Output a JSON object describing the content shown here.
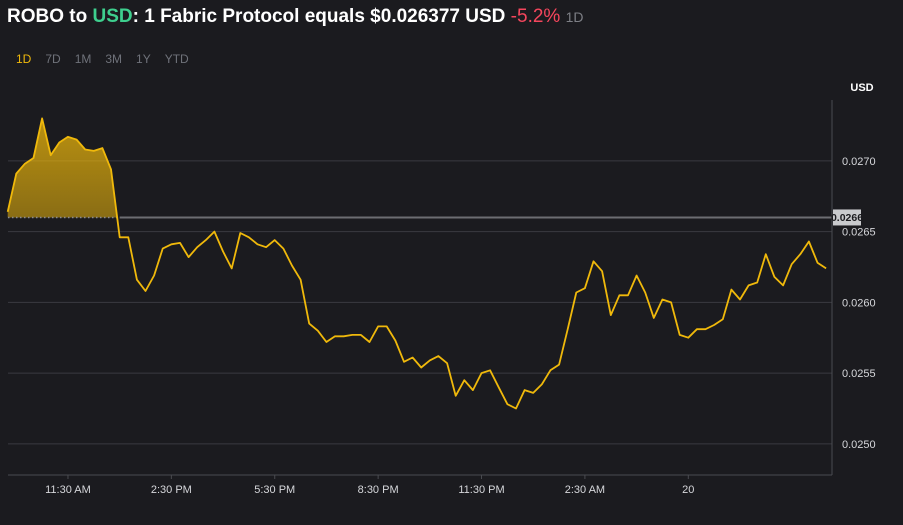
{
  "chart_data": {
    "type": "line",
    "title": [
      "ROBO to",
      "USD",
      ": 1 Fabric Protocol equals $0.026377 USD",
      "-5.2%",
      "1D"
    ],
    "ranges": [
      "1D",
      "7D",
      "1M",
      "3M",
      "1Y",
      "YTD"
    ],
    "active_range": "1D",
    "y_axis_label": "USD",
    "color": "#f0b90b",
    "reference": 0.0266,
    "xlim": [
      9.76,
      33.67
    ],
    "ylim": [
      0.02478,
      0.02743
    ],
    "xticks": [
      {
        "value": 11.5,
        "label": "11:30 AM"
      },
      {
        "value": 14.5,
        "label": "2:30 PM"
      },
      {
        "value": 17.5,
        "label": "5:30 PM"
      },
      {
        "value": 20.5,
        "label": "8:30 PM"
      },
      {
        "value": 23.5,
        "label": "11:30 PM"
      },
      {
        "value": 26.5,
        "label": "2:30 AM"
      },
      {
        "value": 29.5,
        "label": "20"
      }
    ],
    "yticks": [
      {
        "value": 0.025,
        "label": "0.0250"
      },
      0.0255,
      {
        "value": 0.026,
        "label": "0.0260"
      },
      0.0265,
      {
        "value": 0.027,
        "label": "0.0270"
      }
    ],
    "grid": true,
    "x": [
      9.75,
      10,
      10.25,
      10.5,
      10.75,
      11,
      11.25,
      11.5,
      11.75,
      12,
      12.25,
      12.5,
      12.75,
      13,
      13.25,
      13.5,
      13.75,
      14,
      14.25,
      14.5,
      14.75,
      15,
      15.25,
      15.5,
      15.75,
      16,
      16.25,
      16.5,
      16.75,
      17,
      17.25,
      17.5,
      17.75,
      18,
      18.25,
      18.5,
      18.75,
      19,
      19.25,
      19.5,
      19.75,
      20,
      20.25,
      20.5,
      20.75,
      21,
      21.25,
      21.5,
      21.75,
      22,
      22.25,
      22.5,
      22.75,
      23,
      23.25,
      23.5,
      23.75,
      24,
      24.25,
      24.5,
      24.75,
      25,
      25.25,
      25.5,
      25.75,
      26,
      26.25,
      26.5,
      26.75,
      27,
      27.25,
      27.5,
      27.75,
      28,
      28.25,
      28.5,
      28.75,
      29,
      29.25,
      29.5,
      29.75,
      30,
      30.25,
      30.5,
      30.75,
      31,
      31.25,
      31.5,
      31.75,
      32,
      32.25,
      32.5,
      32.75,
      33,
      33.25,
      33.5
    ],
    "values": [
      0.02664,
      0.02691,
      0.02698,
      0.02702,
      0.0273,
      0.02704,
      0.02713,
      0.02717,
      0.02715,
      0.02708,
      0.02707,
      0.02709,
      0.02694,
      0.02646,
      0.02646,
      0.02616,
      0.02608,
      0.02619,
      0.02638,
      0.02641,
      0.02642,
      0.02632,
      0.02639,
      0.02644,
      0.0265,
      0.02636,
      0.02624,
      0.02649,
      0.02646,
      0.02641,
      0.02639,
      0.02644,
      0.02638,
      0.02626,
      0.02616,
      0.02585,
      0.0258,
      0.02572,
      0.02576,
      0.02576,
      0.02577,
      0.02577,
      0.02572,
      0.02583,
      0.02583,
      0.02573,
      0.02558,
      0.02561,
      0.02554,
      0.02559,
      0.02562,
      0.02557,
      0.02534,
      0.02545,
      0.02538,
      0.0255,
      0.02552,
      0.0254,
      0.02528,
      0.02525,
      0.02538,
      0.02536,
      0.02542,
      0.02552,
      0.02556,
      0.02581,
      0.02607,
      0.0261,
      0.02629,
      0.02622,
      0.02591,
      0.02605,
      0.02605,
      0.02619,
      0.02607,
      0.02589,
      0.02602,
      0.026,
      0.02577,
      0.02575,
      0.02581,
      0.02581,
      0.02584,
      0.02588,
      0.02609,
      0.02602,
      0.02612,
      0.02614,
      0.02634,
      0.02618,
      0.02612,
      0.02627,
      0.02634,
      0.02643,
      0.02628,
      0.02624
    ]
  }
}
